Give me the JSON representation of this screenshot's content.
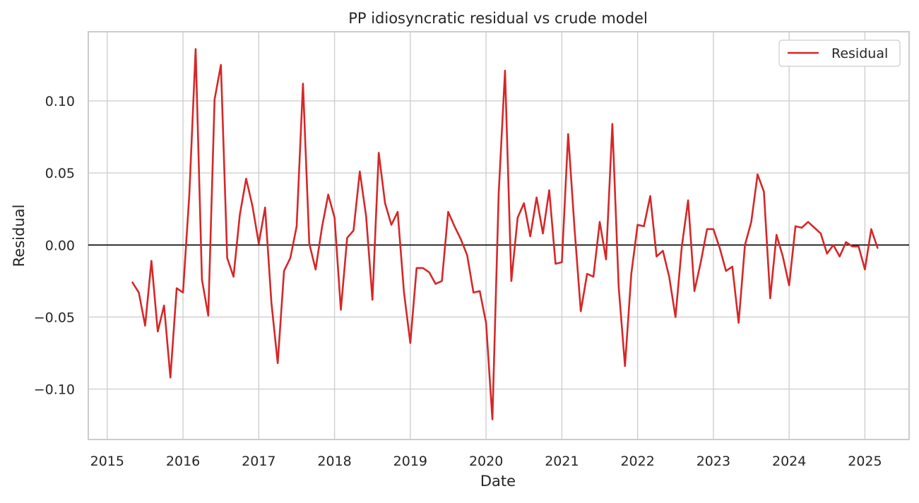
{
  "chart_data": {
    "type": "line",
    "title": "PP idiosyncratic residual vs crude model",
    "xlabel": "Date",
    "ylabel": "Residual",
    "xlim": [
      "2014-10-01",
      "2025-08-01"
    ],
    "ylim": [
      -0.135,
      0.148
    ],
    "x_ticks": [
      "2015",
      "2016",
      "2017",
      "2018",
      "2019",
      "2020",
      "2021",
      "2022",
      "2023",
      "2024",
      "2025"
    ],
    "y_ticks": [
      -0.1,
      -0.05,
      0.0,
      0.05,
      0.1
    ],
    "y_tick_labels": [
      "−0.10",
      "−0.05",
      "0.00",
      "0.05",
      "0.10"
    ],
    "grid": true,
    "reference_line": 0,
    "legend": {
      "position": "top-right",
      "entries": [
        "Residual"
      ]
    },
    "colors": {
      "series": "#d62728",
      "axes": "#cccccc",
      "reference": "#000000"
    },
    "series": [
      {
        "name": "Residual",
        "x": [
          "2015-05",
          "2015-06",
          "2015-07",
          "2015-08",
          "2015-09",
          "2015-10",
          "2015-11",
          "2015-12",
          "2016-01",
          "2016-02",
          "2016-03",
          "2016-04",
          "2016-05",
          "2016-06",
          "2016-07",
          "2016-08",
          "2016-09",
          "2016-10",
          "2016-11",
          "2016-12",
          "2017-01",
          "2017-02",
          "2017-03",
          "2017-04",
          "2017-05",
          "2017-06",
          "2017-07",
          "2017-08",
          "2017-09",
          "2017-10",
          "2017-11",
          "2017-12",
          "2018-01",
          "2018-02",
          "2018-03",
          "2018-04",
          "2018-05",
          "2018-06",
          "2018-07",
          "2018-08",
          "2018-09",
          "2018-10",
          "2018-11",
          "2018-12",
          "2019-01",
          "2019-02",
          "2019-03",
          "2019-04",
          "2019-05",
          "2019-06",
          "2019-07",
          "2019-08",
          "2019-09",
          "2019-10",
          "2019-11",
          "2019-12",
          "2020-01",
          "2020-02",
          "2020-03",
          "2020-04",
          "2020-05",
          "2020-06",
          "2020-07",
          "2020-08",
          "2020-09",
          "2020-10",
          "2020-11",
          "2020-12",
          "2021-01",
          "2021-02",
          "2021-03",
          "2021-04",
          "2021-05",
          "2021-06",
          "2021-07",
          "2021-08",
          "2021-09",
          "2021-10",
          "2021-11",
          "2021-12",
          "2022-01",
          "2022-02",
          "2022-03",
          "2022-04",
          "2022-05",
          "2022-06",
          "2022-07",
          "2022-08",
          "2022-09",
          "2022-10",
          "2022-11",
          "2022-12",
          "2023-01",
          "2023-02",
          "2023-03",
          "2023-04",
          "2023-05",
          "2023-06",
          "2023-07",
          "2023-08",
          "2023-09",
          "2023-10",
          "2023-11",
          "2023-12",
          "2024-01",
          "2024-02",
          "2024-03",
          "2024-04",
          "2024-05",
          "2024-06",
          "2024-07",
          "2024-08",
          "2024-09",
          "2024-10",
          "2024-11",
          "2024-12",
          "2025-01",
          "2025-02",
          "2025-03"
        ],
        "values": [
          -0.026,
          -0.033,
          -0.056,
          -0.011,
          -0.06,
          -0.042,
          -0.092,
          -0.03,
          -0.033,
          0.035,
          0.136,
          -0.024,
          -0.049,
          0.101,
          0.125,
          -0.009,
          -0.022,
          0.021,
          0.046,
          0.027,
          0.001,
          0.026,
          -0.04,
          -0.082,
          -0.018,
          -0.009,
          0.013,
          0.112,
          0.001,
          -0.017,
          0.012,
          0.035,
          0.019,
          -0.045,
          0.005,
          0.01,
          0.051,
          0.02,
          -0.038,
          0.064,
          0.029,
          0.014,
          0.023,
          -0.033,
          -0.068,
          -0.016,
          -0.016,
          -0.019,
          -0.027,
          -0.025,
          0.023,
          0.013,
          0.004,
          -0.007,
          -0.033,
          -0.032,
          -0.054,
          -0.121,
          0.036,
          0.121,
          -0.025,
          0.019,
          0.029,
          0.006,
          0.033,
          0.008,
          0.038,
          -0.013,
          -0.012,
          0.077,
          0.012,
          -0.046,
          -0.02,
          -0.022,
          0.016,
          -0.01,
          0.084,
          -0.029,
          -0.084,
          -0.02,
          0.014,
          0.013,
          0.034,
          -0.008,
          -0.004,
          -0.022,
          -0.05,
          -0.001,
          0.031,
          -0.032,
          -0.012,
          0.011,
          0.011,
          -0.002,
          -0.018,
          -0.015,
          -0.054,
          0.0,
          0.016,
          0.049,
          0.037,
          -0.037,
          0.007,
          -0.008,
          -0.028,
          0.013,
          0.012,
          0.016,
          0.012,
          0.008,
          -0.006,
          0.0,
          -0.008,
          0.002,
          -0.001,
          -0.001,
          -0.017,
          0.011,
          -0.002
        ]
      }
    ]
  }
}
